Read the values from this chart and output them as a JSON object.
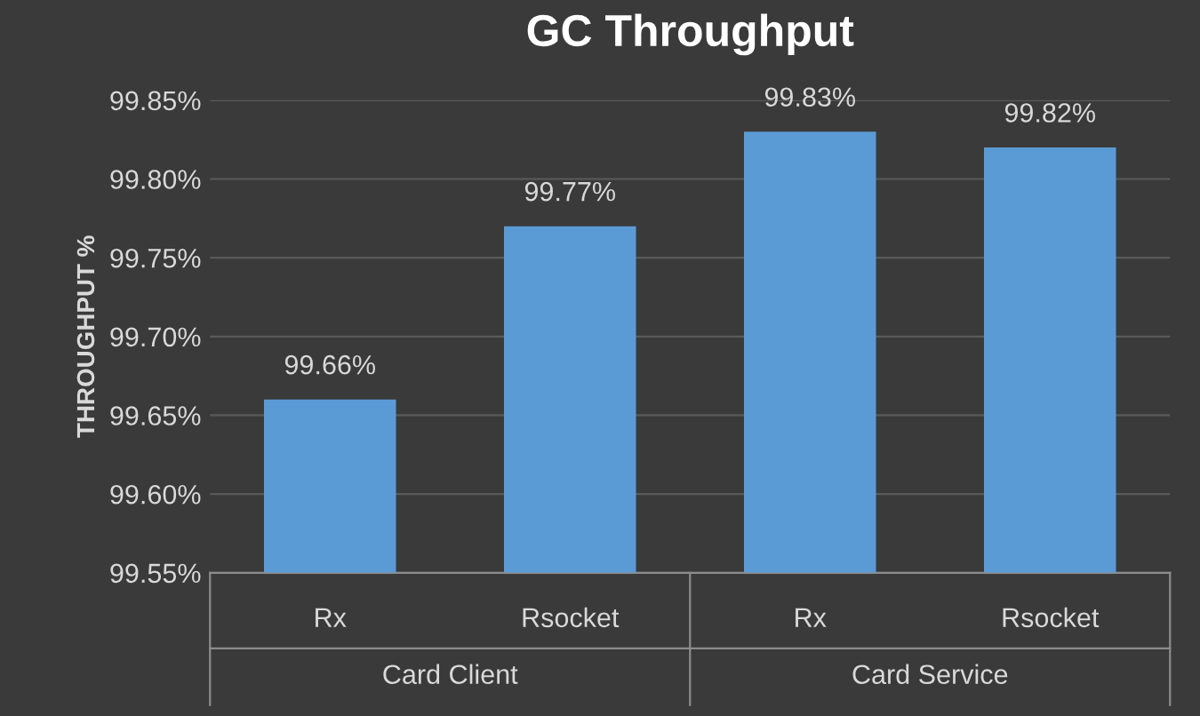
{
  "chart_data": {
    "type": "bar",
    "title": "GC Throughput",
    "ylabel": "THROUGHPUT %",
    "categories": [
      "Rx",
      "Rsocket",
      "Rx",
      "Rsocket"
    ],
    "values": [
      99.66,
      99.77,
      99.83,
      99.82
    ],
    "color": "#5b9bd5",
    "ylim": [
      99.55,
      99.85
    ],
    "yticks": [
      {
        "value": 99.55,
        "label": "99.55%"
      },
      {
        "value": 99.6,
        "label": "99.60%"
      },
      {
        "value": 99.65,
        "label": "99.65%"
      },
      {
        "value": 99.7,
        "label": "99.70%"
      },
      {
        "value": 99.75,
        "label": "99.75%"
      },
      {
        "value": 99.8,
        "label": "99.80%"
      },
      {
        "value": 99.85,
        "label": "99.85%"
      }
    ],
    "value_labels": [
      "99.66%",
      "99.77%",
      "99.83%",
      "99.82%"
    ],
    "annotations": [
      "Card Client",
      "Card Service"
    ],
    "grid": "y"
  }
}
